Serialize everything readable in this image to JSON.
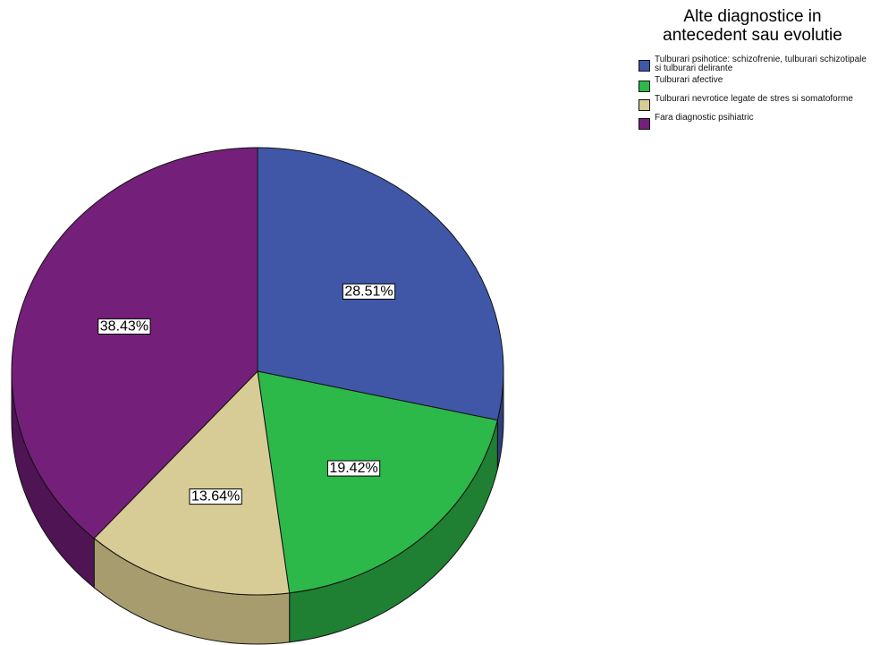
{
  "chart_data": {
    "type": "pie",
    "title_lines": [
      "Alte diagnostice in",
      "antecedent sau evolutie"
    ],
    "series": [
      {
        "name": "Tulburari psihotice: schizofrenie, tulburari schizotipale si tulburari delirante",
        "value": 28.51,
        "label": "28.51%",
        "color": "#3f57a6",
        "side_color": "#2e3f7a"
      },
      {
        "name": "Tulburari afective",
        "value": 19.42,
        "label": "19.42%",
        "color": "#2db84a",
        "side_color": "#1f7f33"
      },
      {
        "name": "Tulburari nevrotice legate de stres si somatoforme",
        "value": 13.64,
        "label": "13.64%",
        "color": "#d7cc95",
        "side_color": "#a79c6d"
      },
      {
        "name": "Fara diagnostic psihiatric",
        "value": 38.43,
        "label": "38.43%",
        "color": "#74207a",
        "side_color": "#4f1454"
      }
    ],
    "legend_position": "top-right",
    "style": "3d"
  }
}
